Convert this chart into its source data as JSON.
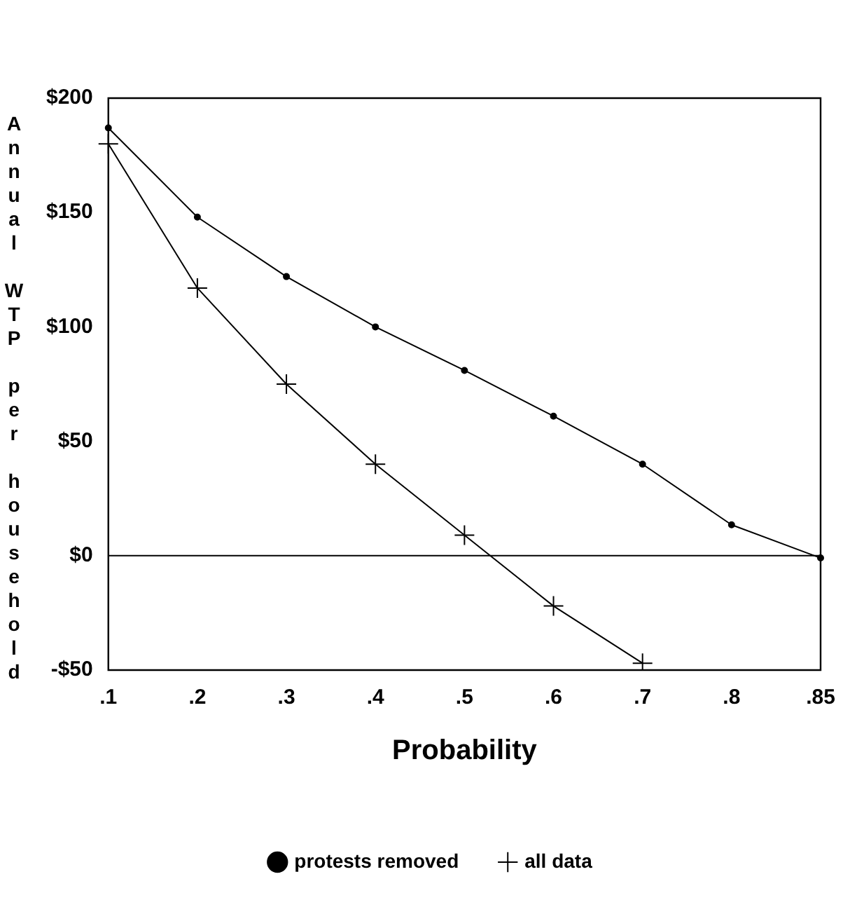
{
  "chart_data": {
    "type": "line",
    "xlabel": "Probability",
    "ylabel": "Annual WTP per household",
    "categories": [
      ".1",
      ".2",
      ".3",
      ".4",
      ".5",
      ".6",
      ".7",
      ".8",
      ".85"
    ],
    "series": [
      {
        "name": "protests removed",
        "color": "#000000",
        "marker": "circle",
        "values": [
          187,
          148,
          122,
          100,
          81,
          61,
          40,
          13.5,
          -1
        ]
      },
      {
        "name": "all data",
        "color": "#000000",
        "marker": "cross",
        "values": [
          180,
          117,
          75,
          40,
          9,
          -22,
          -47,
          null,
          null
        ]
      }
    ],
    "ylim": [
      -50,
      200
    ],
    "yticks": [
      {
        "value": -50,
        "label": "-$50"
      },
      {
        "value": 0,
        "label": "$0"
      },
      {
        "value": 50,
        "label": "$50"
      },
      {
        "value": 100,
        "label": "$100"
      },
      {
        "value": 150,
        "label": "$150"
      },
      {
        "value": 200,
        "label": "$200"
      }
    ],
    "ref_lines": [
      {
        "axis": "y",
        "value": 0,
        "color": "#000000"
      }
    ],
    "grid": false,
    "legend": "bottom",
    "line_style": "solid"
  }
}
